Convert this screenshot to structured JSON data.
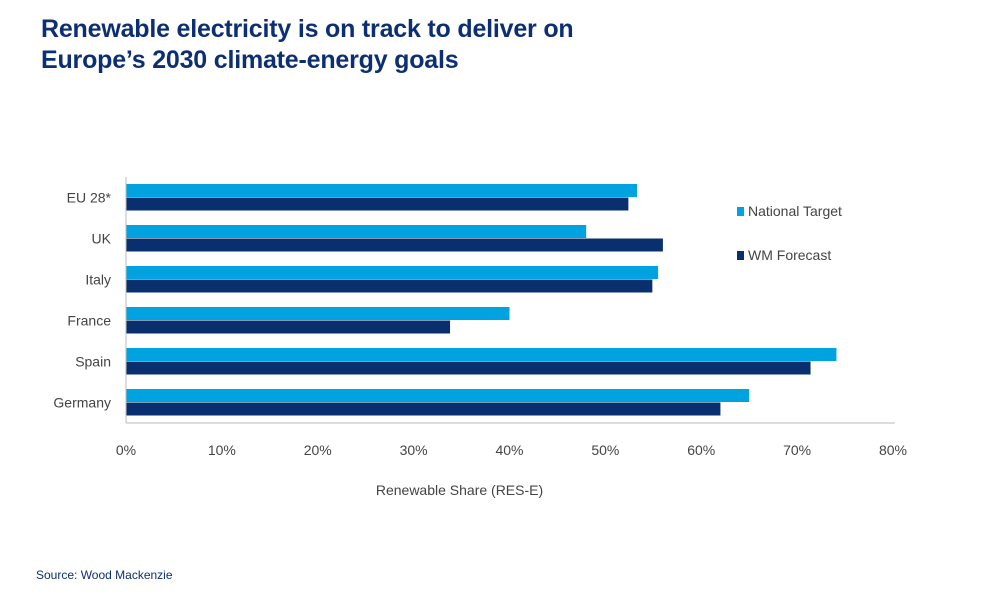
{
  "title": "Renewable electricity is on track to deliver on Europe’s 2030 climate-energy goals",
  "source": "Source: Wood Mackenzie",
  "chart_data": {
    "type": "bar",
    "orientation": "horizontal",
    "categories": [
      "EU 28*",
      "UK",
      "Italy",
      "France",
      "Spain",
      "Germany"
    ],
    "series": [
      {
        "name": "National Target",
        "color": "#00a3e0",
        "values": [
          53.3,
          48.0,
          55.5,
          40.0,
          74.1,
          65.0
        ]
      },
      {
        "name": "WM Forecast",
        "color": "#0a2f6e",
        "values": [
          52.4,
          56.0,
          54.9,
          33.8,
          71.4,
          62.0
        ]
      }
    ],
    "xlabel": "Renewable Share (RES-E)",
    "xlim": [
      0,
      80
    ],
    "xticks": [
      "0%",
      "10%",
      "20%",
      "30%",
      "40%",
      "50%",
      "60%",
      "70%",
      "80%"
    ],
    "grid": false,
    "legend": "right"
  }
}
